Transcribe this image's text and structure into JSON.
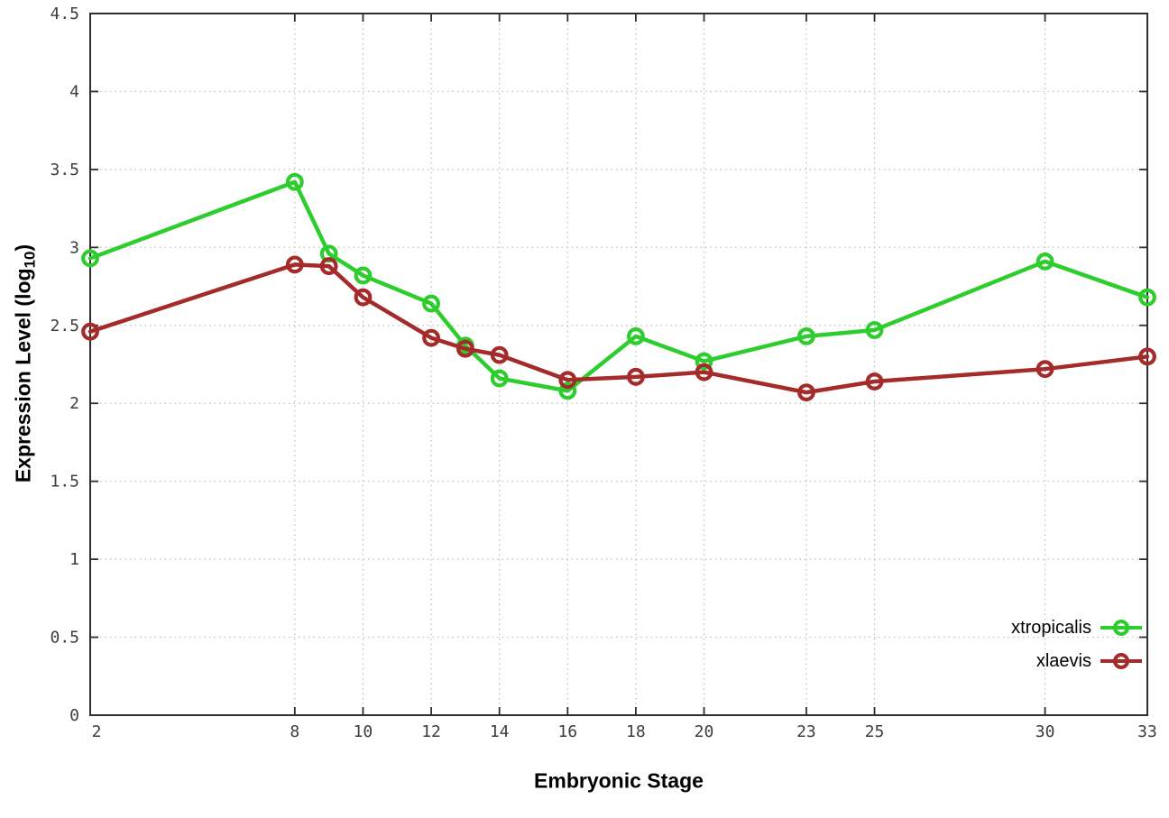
{
  "chart_data": {
    "type": "line",
    "title": "",
    "xlabel": "Embryonic Stage",
    "ylabel_main": "Expression Level (log",
    "ylabel_sub": "10",
    "ylabel_suffix": ")",
    "xlim": [
      2,
      33
    ],
    "ylim": [
      0,
      4.5
    ],
    "x_ticks": [
      2,
      8,
      10,
      12,
      14,
      16,
      18,
      20,
      23,
      25,
      30,
      33
    ],
    "y_ticks": [
      0,
      0.5,
      1,
      1.5,
      2,
      2.5,
      3,
      3.5,
      4,
      4.5
    ],
    "y_tick_labels": [
      "0",
      "0.5",
      "1",
      "1.5",
      "2",
      "2.5",
      "3",
      "3.5",
      "4",
      "4.5"
    ],
    "grid": true,
    "legend_position": "bottom-right",
    "x": [
      2,
      8,
      9,
      10,
      12,
      13,
      14,
      16,
      18,
      20,
      23,
      25,
      30,
      33
    ],
    "series": [
      {
        "name": "xtropicalis",
        "color": "#2dcd2d",
        "values": [
          2.93,
          3.42,
          2.96,
          2.82,
          2.64,
          2.37,
          2.16,
          2.08,
          2.43,
          2.27,
          2.43,
          2.47,
          2.91,
          2.68
        ]
      },
      {
        "name": "xlaevis",
        "color": "#a52a2a",
        "values": [
          2.46,
          2.89,
          2.88,
          2.68,
          2.42,
          2.35,
          2.31,
          2.15,
          2.17,
          2.2,
          2.07,
          2.14,
          2.22,
          2.3
        ]
      }
    ],
    "style": {
      "border_color": "#2e2e2e",
      "grid_color": "#bdbdbd",
      "tick_label_color": "#3d3d3d",
      "marker": "open-circle"
    }
  }
}
